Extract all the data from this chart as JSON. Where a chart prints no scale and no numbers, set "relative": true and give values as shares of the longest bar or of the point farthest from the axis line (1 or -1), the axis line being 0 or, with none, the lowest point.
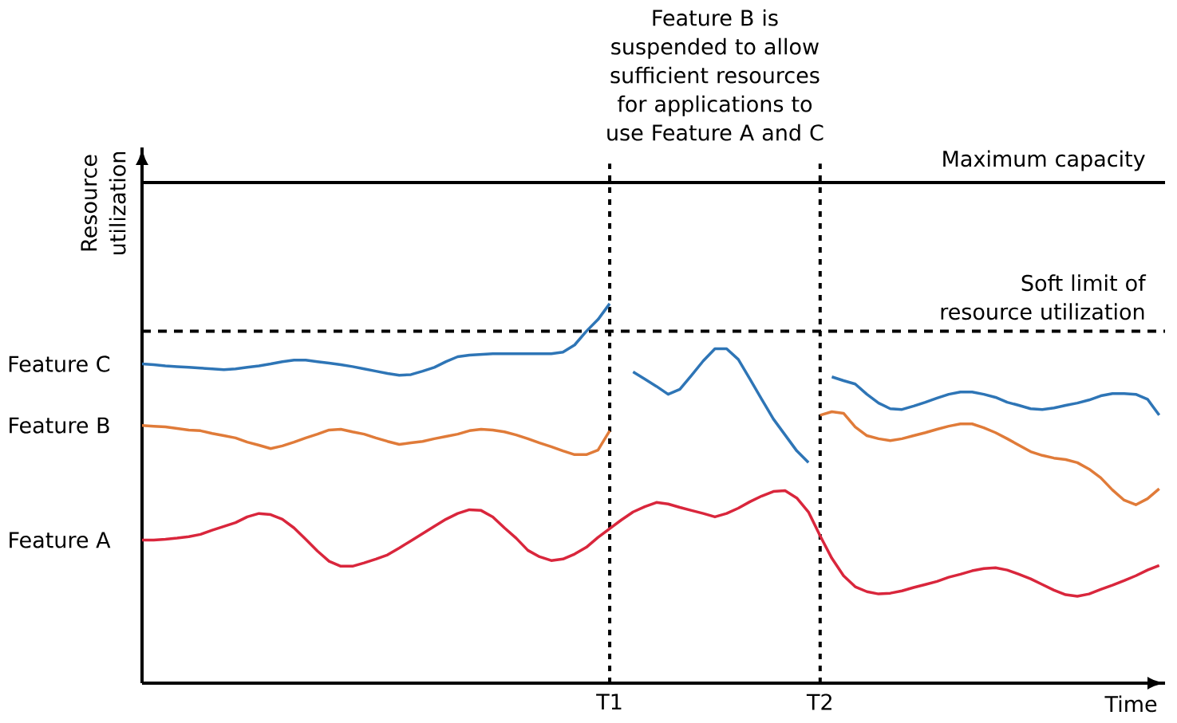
{
  "chart_data": {
    "type": "line",
    "relative": true,
    "xlabel": "Time",
    "ylabel": "Resource utilization",
    "categories": [
      null,
      null,
      null,
      null,
      null,
      null,
      null,
      null,
      null,
      null,
      null,
      null,
      null,
      null,
      null,
      null,
      null,
      null,
      null,
      null,
      null,
      null,
      null,
      null,
      null,
      null,
      null,
      null,
      null,
      null,
      null,
      null,
      null,
      null,
      null,
      null,
      null,
      null,
      null,
      null,
      "T1",
      null,
      null,
      null,
      null,
      null,
      null,
      null,
      null,
      null,
      null,
      null,
      null,
      null,
      null,
      null,
      null,
      null,
      "T2",
      null,
      null,
      null,
      null,
      null,
      null,
      null,
      null,
      null,
      null,
      null,
      null,
      null,
      null,
      null,
      null,
      null,
      null,
      null,
      null,
      null,
      null,
      null,
      null,
      null,
      null,
      null,
      null,
      null
    ],
    "series": [
      {
        "name": "Feature C",
        "color": "#2e75b6",
        "values": [
          0.841,
          0.839,
          0.836,
          0.834,
          0.832,
          0.83,
          0.828,
          0.826,
          0.828,
          0.832,
          0.836,
          0.841,
          0.847,
          0.851,
          0.851,
          0.847,
          0.843,
          0.839,
          0.834,
          0.828,
          0.822,
          0.816,
          0.811,
          0.813,
          0.822,
          0.832,
          0.847,
          0.86,
          0.864,
          0.866,
          0.868,
          0.868,
          0.868,
          0.868,
          0.868,
          0.868,
          0.872,
          0.891,
          0.927,
          0.958,
          1.0,
          null,
          0.82,
          0.801,
          0.782,
          0.761,
          0.774,
          0.811,
          0.849,
          0.881,
          0.881,
          0.853,
          0.801,
          0.748,
          0.696,
          0.654,
          0.612,
          0.581,
          null,
          0.807,
          0.797,
          0.788,
          0.761,
          0.738,
          0.723,
          0.721,
          0.73,
          0.74,
          0.751,
          0.761,
          0.767,
          0.767,
          0.761,
          0.753,
          0.74,
          0.732,
          0.723,
          0.721,
          0.725,
          0.732,
          0.738,
          0.746,
          0.757,
          0.763,
          0.763,
          0.761,
          0.748,
          0.706
        ]
      },
      {
        "name": "Feature B",
        "color": "#e07b39",
        "values": [
          0.679,
          0.677,
          0.675,
          0.671,
          0.667,
          0.665,
          0.658,
          0.652,
          0.646,
          0.635,
          0.627,
          0.618,
          0.625,
          0.635,
          0.646,
          0.656,
          0.667,
          0.669,
          0.662,
          0.656,
          0.646,
          0.637,
          0.629,
          0.633,
          0.637,
          0.644,
          0.65,
          0.656,
          0.665,
          0.669,
          0.667,
          0.662,
          0.654,
          0.644,
          0.633,
          0.623,
          0.612,
          0.602,
          0.602,
          0.614,
          0.665,
          null,
          null,
          null,
          null,
          null,
          null,
          null,
          null,
          null,
          null,
          null,
          null,
          null,
          null,
          null,
          null,
          null,
          0.706,
          0.715,
          0.711,
          0.675,
          0.652,
          0.644,
          0.639,
          0.644,
          0.652,
          0.66,
          0.669,
          0.677,
          0.683,
          0.683,
          0.673,
          0.66,
          0.644,
          0.627,
          0.61,
          0.6,
          0.593,
          0.589,
          0.581,
          0.564,
          0.541,
          0.509,
          0.482,
          0.47,
          0.486,
          0.512
        ]
      },
      {
        "name": "Feature A",
        "color": "#d9263c",
        "values": [
          0.377,
          0.377,
          0.379,
          0.382,
          0.386,
          0.392,
          0.403,
          0.413,
          0.423,
          0.438,
          0.447,
          0.444,
          0.432,
          0.409,
          0.379,
          0.348,
          0.321,
          0.308,
          0.308,
          0.317,
          0.327,
          0.338,
          0.356,
          0.375,
          0.394,
          0.413,
          0.432,
          0.447,
          0.457,
          0.455,
          0.438,
          0.409,
          0.382,
          0.35,
          0.333,
          0.323,
          0.327,
          0.34,
          0.358,
          0.384,
          0.407,
          0.43,
          0.451,
          0.465,
          0.476,
          0.472,
          0.463,
          0.455,
          0.447,
          0.438,
          0.447,
          0.461,
          0.478,
          0.493,
          0.505,
          0.507,
          0.488,
          0.451,
          0.388,
          0.329,
          0.283,
          0.254,
          0.241,
          0.235,
          0.237,
          0.243,
          0.252,
          0.26,
          0.268,
          0.279,
          0.287,
          0.296,
          0.302,
          0.304,
          0.298,
          0.287,
          0.275,
          0.26,
          0.245,
          0.233,
          0.229,
          0.235,
          0.247,
          0.258,
          0.27,
          0.283,
          0.298,
          0.31
        ]
      }
    ],
    "ref_lines": [
      {
        "axis": "y",
        "value": 1.319,
        "label": "Maximum capacity",
        "color": "#000000",
        "line_style": "solid"
      },
      {
        "axis": "y",
        "value": 0.927,
        "label": "Soft limit of resource utilization",
        "color": "#000000",
        "line_style": "dashed"
      },
      {
        "axis": "x",
        "value": "T1",
        "color": "#000000",
        "line_style": "dotted"
      },
      {
        "axis": "x",
        "value": "T2",
        "color": "#000000",
        "line_style": "dotted"
      }
    ],
    "annotations": [
      "Feature B is suspended to allow sufficient resources for applications to use Feature A and C"
    ]
  }
}
